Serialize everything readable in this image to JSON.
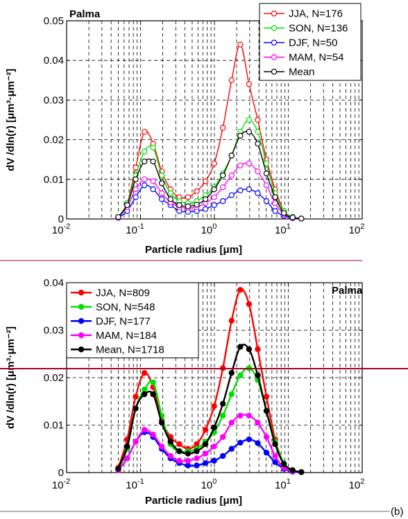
{
  "colors": {
    "JJA": "#ff0000",
    "SON": "#00e000",
    "DJF": "#0000ff",
    "MAM": "#ff00ff",
    "Mean": "#000000",
    "rule": "#a00020"
  },
  "figure_label": "(b)",
  "chart_data": [
    {
      "type": "line",
      "site_label": "Palma",
      "xlabel": "Particle radius [μm]",
      "ylabel": "dV /dln(r) [μm³·μm⁻²]",
      "xscale": "log",
      "xlim": [
        0.01,
        100
      ],
      "ylim": [
        0,
        0.05
      ],
      "yticks": [
        "0",
        "0.01",
        "0.02",
        "0.03",
        "0.04",
        "0.05"
      ],
      "xticks": [
        {
          "base": "10",
          "exp": "-2"
        },
        {
          "base": "10",
          "exp": "-1"
        },
        {
          "base": "10",
          "exp": "0"
        },
        {
          "base": "10",
          "exp": "1"
        },
        {
          "base": "10",
          "exp": "2"
        }
      ],
      "grid": true,
      "legend_position": "top-right",
      "marker": "open",
      "x": [
        0.05,
        0.066,
        0.086,
        0.113,
        0.148,
        0.194,
        0.255,
        0.335,
        0.439,
        0.576,
        0.756,
        0.992,
        1.302,
        1.708,
        2.241,
        2.94,
        3.857,
        5.061,
        6.641,
        8.713,
        11.432,
        15.0
      ],
      "series": [
        {
          "key": "JJA",
          "name": "JJA, N=176",
          "values": [
            0.0005,
            0.004,
            0.013,
            0.022,
            0.019,
            0.012,
            0.0075,
            0.0055,
            0.0055,
            0.007,
            0.0095,
            0.014,
            0.023,
            0.035,
            0.044,
            0.034,
            0.025,
            0.015,
            0.0075,
            0.002,
            0.0005,
            0.0001
          ]
        },
        {
          "key": "SON",
          "name": "SON, N=136",
          "values": [
            0.0005,
            0.004,
            0.011,
            0.017,
            0.018,
            0.011,
            0.0065,
            0.0045,
            0.004,
            0.0045,
            0.006,
            0.008,
            0.0115,
            0.016,
            0.022,
            0.025,
            0.022,
            0.014,
            0.0065,
            0.002,
            0.0005,
            0.0001
          ]
        },
        {
          "key": "DJF",
          "name": "DJF, N=50",
          "values": [
            0.0003,
            0.002,
            0.0055,
            0.0085,
            0.0075,
            0.005,
            0.0035,
            0.002,
            0.0018,
            0.002,
            0.0025,
            0.0035,
            0.0045,
            0.006,
            0.0072,
            0.0075,
            0.0065,
            0.0045,
            0.002,
            0.0008,
            0.0002,
            0.0001
          ]
        },
        {
          "key": "MAM",
          "name": "MAM, N=54",
          "values": [
            0.0004,
            0.003,
            0.0075,
            0.01,
            0.0095,
            0.0065,
            0.0042,
            0.003,
            0.0028,
            0.003,
            0.004,
            0.0055,
            0.008,
            0.011,
            0.0135,
            0.014,
            0.012,
            0.0085,
            0.004,
            0.0012,
            0.0003,
            0.0001
          ]
        },
        {
          "key": "Mean",
          "name": "Mean",
          "values": [
            0.0005,
            0.0035,
            0.01,
            0.0145,
            0.0145,
            0.009,
            0.005,
            0.0035,
            0.0032,
            0.0036,
            0.005,
            0.0075,
            0.011,
            0.016,
            0.021,
            0.022,
            0.019,
            0.0115,
            0.0055,
            0.0015,
            0.0004,
            0.0001
          ]
        }
      ]
    },
    {
      "type": "line",
      "site_label": "Palma",
      "xlabel": "Particle radius [μm]",
      "ylabel": "dV /dln(r) [μm³·μm⁻²]",
      "xscale": "log",
      "xlim": [
        0.01,
        100
      ],
      "ylim": [
        0,
        0.04
      ],
      "yticks": [
        "0",
        "0.01",
        "0.02",
        "0.03",
        "0.04"
      ],
      "xticks": [
        {
          "base": "10",
          "exp": "-2"
        },
        {
          "base": "10",
          "exp": "-1"
        },
        {
          "base": "10",
          "exp": "0"
        },
        {
          "base": "10",
          "exp": "1"
        },
        {
          "base": "10",
          "exp": "2"
        }
      ],
      "grid": true,
      "legend_position": "top-left",
      "marker": "filled",
      "x": [
        0.05,
        0.066,
        0.086,
        0.113,
        0.148,
        0.194,
        0.255,
        0.335,
        0.439,
        0.576,
        0.756,
        0.992,
        1.302,
        1.708,
        2.241,
        2.94,
        3.857,
        5.061,
        6.641,
        8.713,
        11.432,
        15.0
      ],
      "series": [
        {
          "key": "JJA",
          "name": "JJA, N=809",
          "values": [
            0.001,
            0.007,
            0.016,
            0.021,
            0.018,
            0.011,
            0.0075,
            0.006,
            0.005,
            0.006,
            0.009,
            0.014,
            0.022,
            0.032,
            0.0385,
            0.0355,
            0.026,
            0.016,
            0.007,
            0.002,
            0.0005,
            0.0001
          ]
        },
        {
          "key": "SON",
          "name": "SON, N=548",
          "values": [
            0.0008,
            0.005,
            0.0135,
            0.0175,
            0.019,
            0.012,
            0.006,
            0.0045,
            0.0045,
            0.005,
            0.0065,
            0.0085,
            0.012,
            0.0165,
            0.0205,
            0.022,
            0.0195,
            0.013,
            0.0065,
            0.002,
            0.0005,
            0.0001
          ]
        },
        {
          "key": "DJF",
          "name": "DJF, N=177",
          "values": [
            0.0005,
            0.003,
            0.0065,
            0.0085,
            0.0075,
            0.005,
            0.003,
            0.002,
            0.0015,
            0.0015,
            0.002,
            0.0025,
            0.0035,
            0.005,
            0.0063,
            0.007,
            0.0062,
            0.0042,
            0.0022,
            0.0008,
            0.0002,
            0.0001
          ]
        },
        {
          "key": "MAM",
          "name": "MAM, N=184",
          "values": [
            0.0005,
            0.003,
            0.0065,
            0.009,
            0.008,
            0.0055,
            0.0035,
            0.0025,
            0.0025,
            0.003,
            0.004,
            0.0055,
            0.0075,
            0.0105,
            0.012,
            0.012,
            0.0105,
            0.0075,
            0.0035,
            0.001,
            0.0003,
            0.0001
          ]
        },
        {
          "key": "Mean",
          "name": "Mean, N=1718",
          "values": [
            0.0008,
            0.0055,
            0.0135,
            0.0165,
            0.0165,
            0.0105,
            0.0065,
            0.0045,
            0.004,
            0.0045,
            0.006,
            0.0095,
            0.0145,
            0.021,
            0.0265,
            0.026,
            0.0205,
            0.013,
            0.006,
            0.0018,
            0.0005,
            0.0001
          ]
        }
      ]
    }
  ]
}
